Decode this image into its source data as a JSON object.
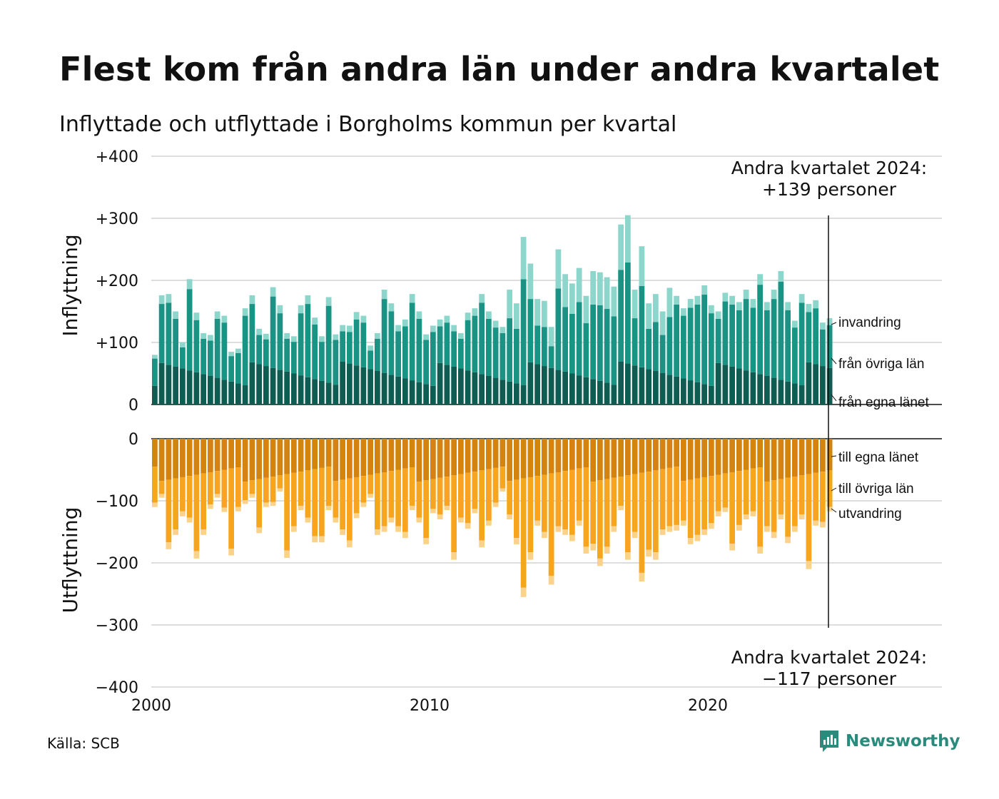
{
  "title": "Flest kom från andra län under andra kvartalet",
  "subtitle": "Inflyttade och utflyttade i Borgholms kommun per kvartal",
  "source": "Källa: SCB",
  "brand": "Newsworthy",
  "colors": {
    "egna_lanet_in": "#0f5c52",
    "ovriga_lan_in": "#199484",
    "invandring": "#8dd6cb",
    "egna_lanet_ut": "#d4830e",
    "ovriga_lan_ut": "#f7a51f",
    "utvandring": "#fbd28a",
    "grid": "#dddddd",
    "brand": "#2a8a7c"
  },
  "annotations": {
    "top_line1": "Andra kvartalet 2024:",
    "top_line2": "+139 personer",
    "bottom_line1": "Andra kvartalet 2024:",
    "bottom_line2": "−117 personer"
  },
  "chart_data": {
    "type": "bar",
    "stacked": true,
    "xlabel": "",
    "x_ticks": [
      "2000",
      "2010",
      "2020"
    ],
    "panels": [
      {
        "ylabel": "Inflyttning",
        "ylim": [
          0,
          400
        ],
        "y_ticks": [
          "0",
          "+100",
          "+200",
          "+300",
          "+400"
        ],
        "series_labels": [
          "från egna länet",
          "från övriga län",
          "invandring"
        ]
      },
      {
        "ylabel": "Utflyttning",
        "ylim": [
          -400,
          0
        ],
        "y_ticks": [
          "−400",
          "−300",
          "−200",
          "−100",
          "0"
        ],
        "series_labels": [
          "till egna länet",
          "till övriga län",
          "utvandring"
        ]
      }
    ],
    "start": "2000 Q1",
    "end": "2024 Q2",
    "inflyttning_totals": [
      80,
      176,
      178,
      150,
      100,
      202,
      148,
      115,
      112,
      150,
      143,
      85,
      90,
      155,
      176,
      122,
      114,
      189,
      160,
      115,
      110,
      160,
      176,
      140,
      110,
      173,
      113,
      128,
      127,
      149,
      143,
      95,
      115,
      185,
      163,
      128,
      137,
      178,
      150,
      113,
      127,
      137,
      143,
      128,
      115,
      148,
      155,
      178,
      150,
      135,
      125,
      185,
      163,
      270,
      227,
      170,
      167,
      125,
      250,
      210,
      195,
      220,
      175,
      215,
      213,
      205,
      190,
      290,
      305,
      185,
      255,
      163,
      178,
      150,
      188,
      175,
      155,
      170,
      175,
      192,
      160,
      150,
      180,
      175,
      165,
      185,
      170,
      210,
      165,
      185,
      215,
      165,
      135,
      178,
      162,
      168,
      132,
      139
    ],
    "utflyttning_totals": [
      -110,
      -95,
      -178,
      -155,
      -125,
      -135,
      -193,
      -155,
      -113,
      -95,
      -118,
      -188,
      -117,
      -105,
      -95,
      -152,
      -110,
      -108,
      -85,
      -192,
      -150,
      -115,
      -135,
      -167,
      -167,
      -115,
      -135,
      -155,
      -175,
      -128,
      -110,
      -95,
      -155,
      -150,
      -135,
      -150,
      -160,
      -115,
      -135,
      -170,
      -120,
      -130,
      -115,
      -195,
      -135,
      -145,
      -120,
      -175,
      -140,
      -110,
      -85,
      -130,
      -170,
      -255,
      -195,
      -140,
      -160,
      -235,
      -150,
      -155,
      -165,
      -140,
      -185,
      -180,
      -205,
      -185,
      -150,
      -115,
      -195,
      -160,
      -230,
      -190,
      -195,
      -155,
      -150,
      -148,
      -140,
      -170,
      -165,
      -155,
      -145,
      -125,
      -118,
      -180,
      -148,
      -130,
      -125,
      -185,
      -150,
      -160,
      -130,
      -168,
      -150,
      -130,
      -210,
      -140,
      -143,
      -117
    ]
  }
}
